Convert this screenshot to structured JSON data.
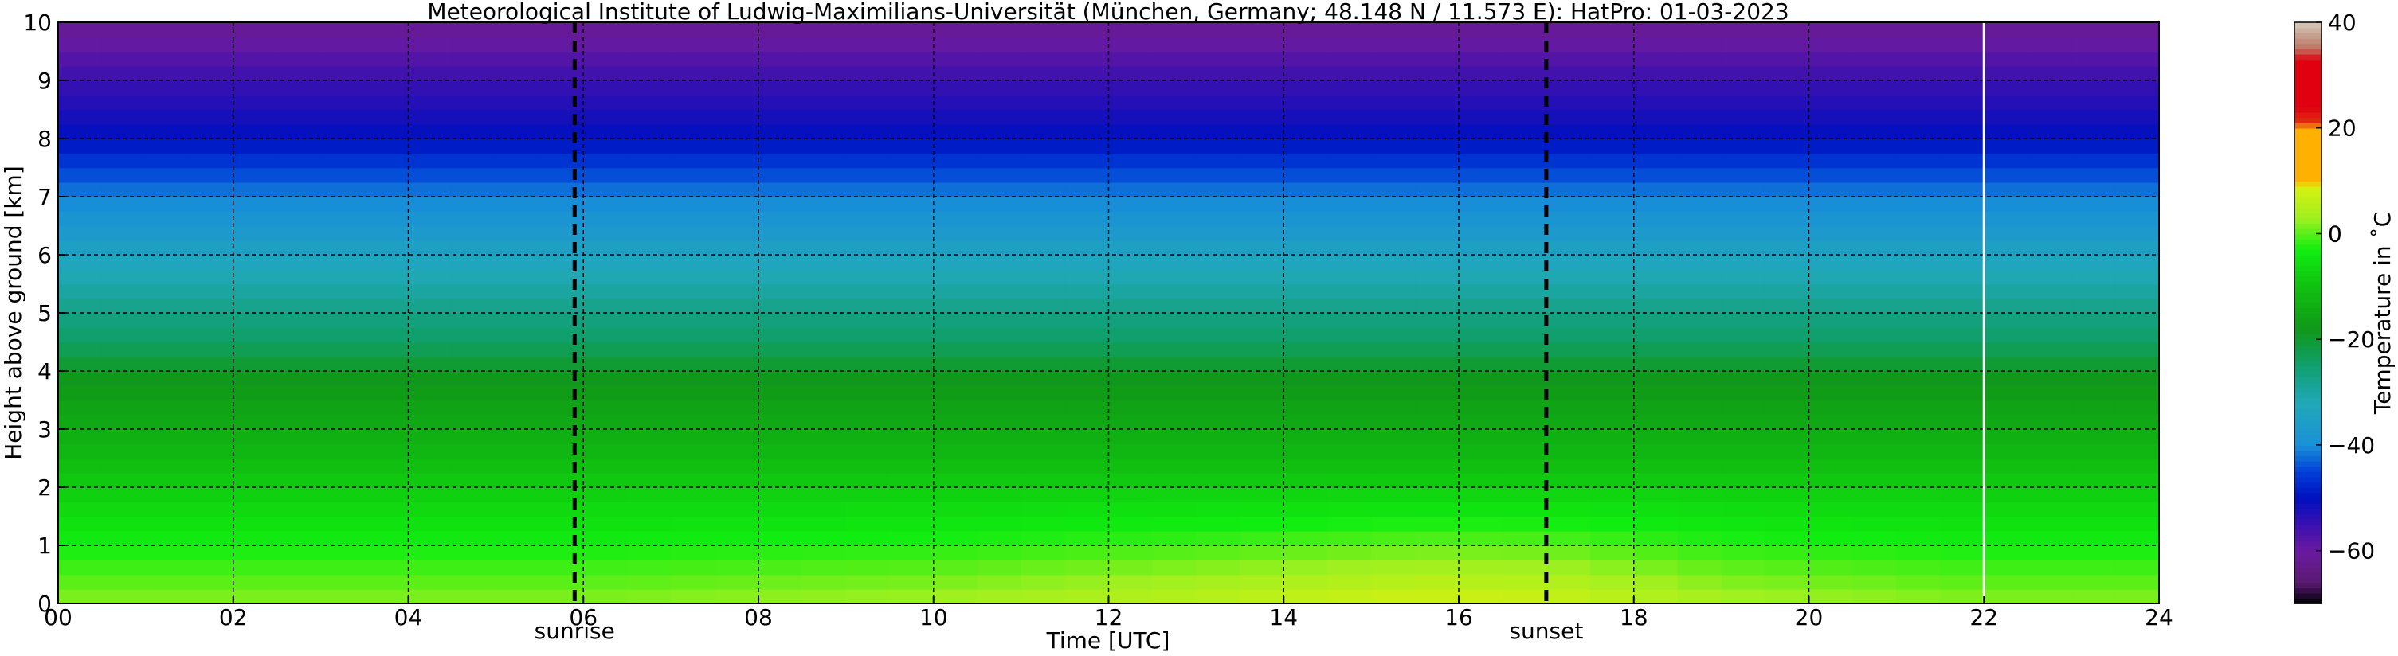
{
  "chart_data": {
    "type": "heatmap",
    "title": "Meteorological Institute of Ludwig-Maximilians-Universität (München, Germany; 48.148 N / 11.573 E):    HatPro: 01-03-2023",
    "xlabel": "Time [UTC]",
    "ylabel": "Height above ground [km]",
    "xlim": [
      0,
      24
    ],
    "ylim": [
      0,
      10
    ],
    "x_ticks": [
      {
        "value": 0,
        "label": "00"
      },
      {
        "value": 2,
        "label": "02"
      },
      {
        "value": 4,
        "label": "04"
      },
      {
        "value": 6,
        "label": "06"
      },
      {
        "value": 8,
        "label": "08"
      },
      {
        "value": 10,
        "label": "10"
      },
      {
        "value": 12,
        "label": "12"
      },
      {
        "value": 14,
        "label": "14"
      },
      {
        "value": 16,
        "label": "16"
      },
      {
        "value": 18,
        "label": "18"
      },
      {
        "value": 20,
        "label": "20"
      },
      {
        "value": 22,
        "label": "22"
      },
      {
        "value": 24,
        "label": "24"
      }
    ],
    "y_ticks": [
      {
        "value": 0,
        "label": "0"
      },
      {
        "value": 1,
        "label": "1"
      },
      {
        "value": 2,
        "label": "2"
      },
      {
        "value": 3,
        "label": "3"
      },
      {
        "value": 4,
        "label": "4"
      },
      {
        "value": 5,
        "label": "5"
      },
      {
        "value": 6,
        "label": "6"
      },
      {
        "value": 7,
        "label": "7"
      },
      {
        "value": 8,
        "label": "8"
      },
      {
        "value": 9,
        "label": "9"
      },
      {
        "value": 10,
        "label": "10"
      }
    ],
    "grid": true,
    "events": [
      {
        "label": "sunrise",
        "time": 5.9
      },
      {
        "label": "sunset",
        "time": 17.0
      }
    ],
    "data_gap_time": 22.0,
    "colorbar": {
      "label": "Temperature in ˚C",
      "range": [
        -70,
        40
      ],
      "ticks": [
        {
          "value": 40,
          "label": "40"
        },
        {
          "value": 20,
          "label": "20"
        },
        {
          "value": 0,
          "label": "0"
        },
        {
          "value": -20,
          "label": "−20"
        },
        {
          "value": -40,
          "label": "−40"
        },
        {
          "value": -60,
          "label": "−60"
        }
      ],
      "colors": [
        {
          "value": -70,
          "color": "#000000"
        },
        {
          "value": -68,
          "color": "#2a0a3a"
        },
        {
          "value": -66,
          "color": "#5a1a70"
        },
        {
          "value": -60,
          "color": "#6a1aa0"
        },
        {
          "value": -55,
          "color": "#3a10b0"
        },
        {
          "value": -50,
          "color": "#0010c0"
        },
        {
          "value": -45,
          "color": "#0040d8"
        },
        {
          "value": -40,
          "color": "#1a90d8"
        },
        {
          "value": -32,
          "color": "#20a8b8"
        },
        {
          "value": -25,
          "color": "#10a070"
        },
        {
          "value": -18,
          "color": "#109818"
        },
        {
          "value": -10,
          "color": "#10c010"
        },
        {
          "value": -3,
          "color": "#10ee10"
        },
        {
          "value": 3,
          "color": "#a0f020"
        },
        {
          "value": 9,
          "color": "#d8f010"
        },
        {
          "value": 10,
          "color": "#ffb000"
        },
        {
          "value": 20,
          "color": "#ffb000"
        },
        {
          "value": 21,
          "color": "#e03010"
        },
        {
          "value": 24,
          "color": "#e00010"
        },
        {
          "value": 33,
          "color": "#e00010"
        },
        {
          "value": 35,
          "color": "#c07060"
        },
        {
          "value": 38,
          "color": "#c8a898"
        },
        {
          "value": 40,
          "color": "#d8c8b8"
        }
      ]
    },
    "temperature_profile": [
      {
        "height_km": 0.0,
        "temp_c": 2
      },
      {
        "height_km": 1.0,
        "temp_c": -3
      },
      {
        "height_km": 2.0,
        "temp_c": -8
      },
      {
        "height_km": 3.0,
        "temp_c": -14
      },
      {
        "height_km": 4.0,
        "temp_c": -19
      },
      {
        "height_km": 4.5,
        "temp_c": -24
      },
      {
        "height_km": 5.0,
        "temp_c": -27
      },
      {
        "height_km": 6.0,
        "temp_c": -34
      },
      {
        "height_km": 7.0,
        "temp_c": -41
      },
      {
        "height_km": 7.6,
        "temp_c": -46
      },
      {
        "height_km": 8.0,
        "temp_c": -50
      },
      {
        "height_km": 9.0,
        "temp_c": -55
      },
      {
        "height_km": 10.0,
        "temp_c": -62
      }
    ],
    "surface_warming": [
      {
        "time": 0,
        "delta_c": 0
      },
      {
        "time": 6,
        "delta_c": 0
      },
      {
        "time": 10,
        "delta_c": 1.5
      },
      {
        "time": 13,
        "delta_c": 4
      },
      {
        "time": 15.5,
        "delta_c": 6.5
      },
      {
        "time": 17,
        "delta_c": 6
      },
      {
        "time": 19,
        "delta_c": 2
      },
      {
        "time": 22,
        "delta_c": 0
      },
      {
        "time": 24,
        "delta_c": 0
      }
    ]
  }
}
